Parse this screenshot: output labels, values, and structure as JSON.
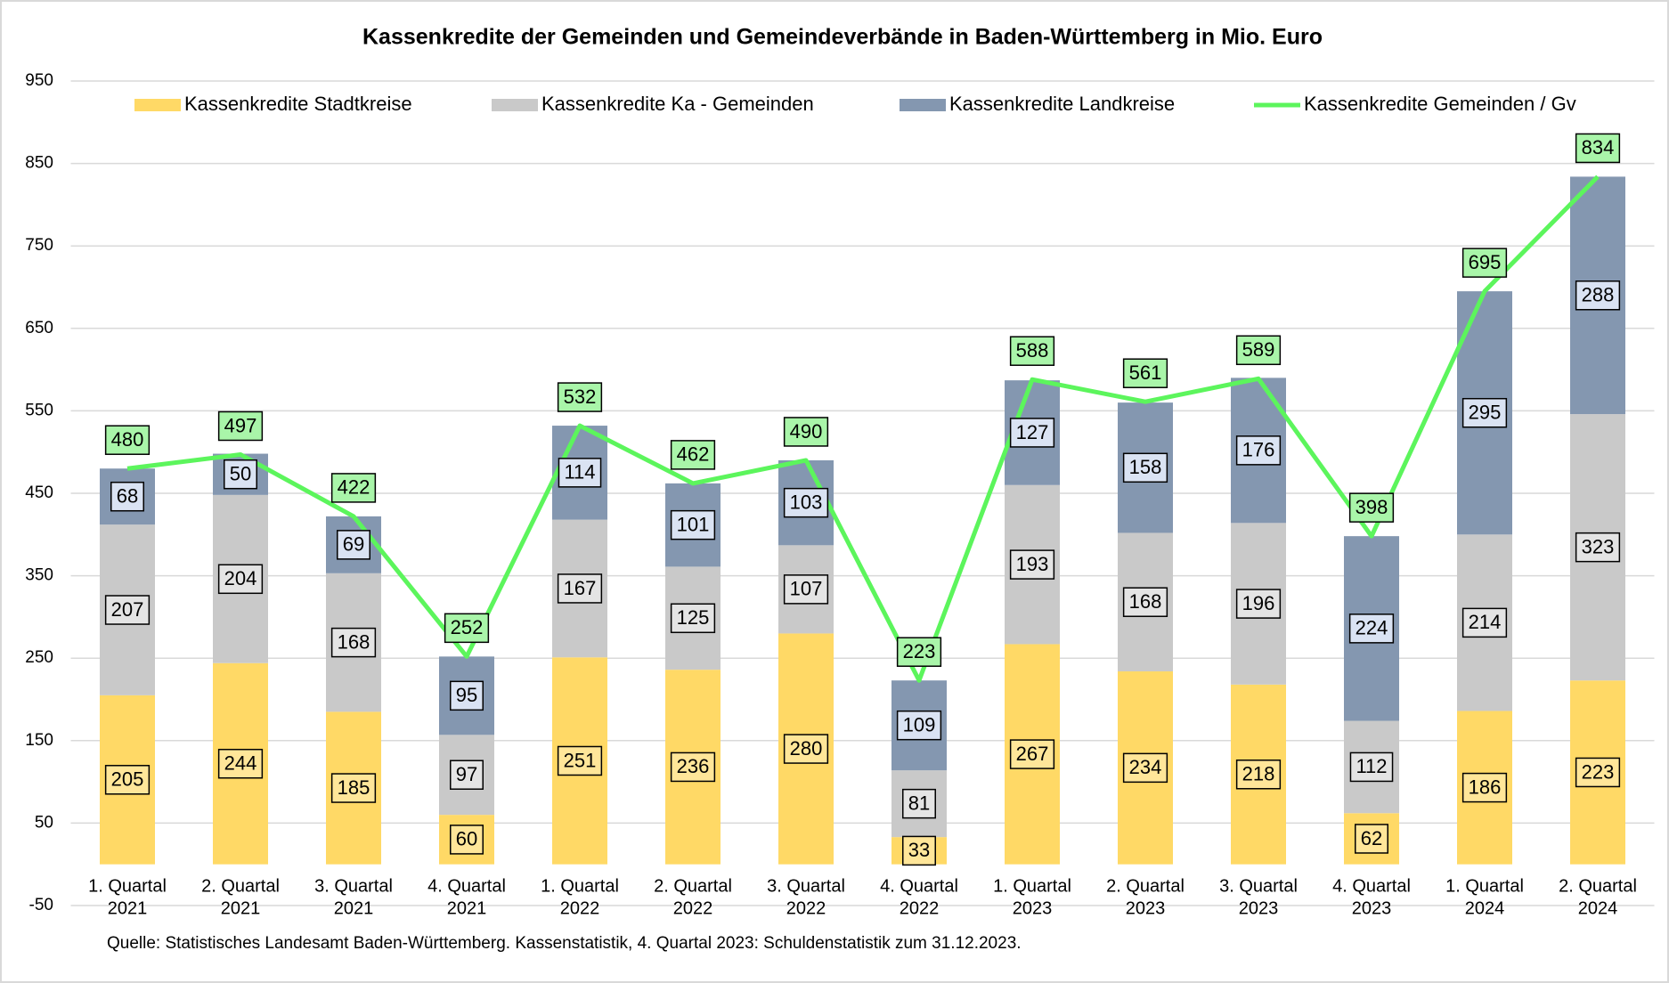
{
  "chart_data": {
    "type": "stacked_bar_line",
    "title": "Kassenkredite der Gemeinden und Gemeindeverbände in Baden-Württemberg in Mio. Euro",
    "source": "Quelle: Statistisches Landesamt Baden-Württemberg. Kassenstatistik, 4. Quartal 2023: Schuldenstatistik zum 31.12.2023.",
    "categories": [
      [
        "1. Quartal",
        "2021"
      ],
      [
        "2. Quartal",
        "2021"
      ],
      [
        "3. Quartal",
        "2021"
      ],
      [
        "4. Quartal",
        "2021"
      ],
      [
        "1. Quartal",
        "2022"
      ],
      [
        "2. Quartal",
        "2022"
      ],
      [
        "3. Quartal",
        "2022"
      ],
      [
        "4. Quartal",
        "2022"
      ],
      [
        "1. Quartal",
        "2023"
      ],
      [
        "2. Quartal",
        "2023"
      ],
      [
        "3. Quartal",
        "2023"
      ],
      [
        "4. Quartal",
        "2023"
      ],
      [
        "1. Quartal",
        "2024"
      ],
      [
        "2. Quartal",
        "2024"
      ]
    ],
    "series": [
      {
        "name": "Kassenkredite Stadtkreise",
        "type": "bar",
        "color": "#ffd966",
        "label_color": "#ffe699",
        "values": [
          205,
          244,
          185,
          60,
          251,
          236,
          280,
          33,
          267,
          234,
          218,
          62,
          186,
          223
        ]
      },
      {
        "name": "Kassenkredite Ka - Gemeinden",
        "type": "bar",
        "color": "#c9c9c9",
        "label_color": "#e4e4e4",
        "values": [
          207,
          204,
          168,
          97,
          167,
          125,
          107,
          81,
          193,
          168,
          196,
          112,
          214,
          323
        ]
      },
      {
        "name": "Kassenkredite Landkreise",
        "type": "bar",
        "color": "#8497b0",
        "label_color": "#dae3f3",
        "values": [
          68,
          50,
          69,
          95,
          114,
          101,
          103,
          109,
          127,
          158,
          176,
          224,
          295,
          288
        ]
      },
      {
        "name": "Kassenkredite Gemeinden / Gv",
        "type": "line",
        "color": "#5cf55c",
        "label_color": "#a9f5a9",
        "values": [
          480,
          497,
          422,
          252,
          532,
          462,
          490,
          223,
          588,
          561,
          589,
          398,
          695,
          834
        ]
      }
    ],
    "ylim": [
      -50,
      950
    ],
    "yticks": [
      -50,
      50,
      150,
      250,
      350,
      450,
      550,
      650,
      750,
      850,
      950
    ],
    "grid": true,
    "legend": "top"
  }
}
